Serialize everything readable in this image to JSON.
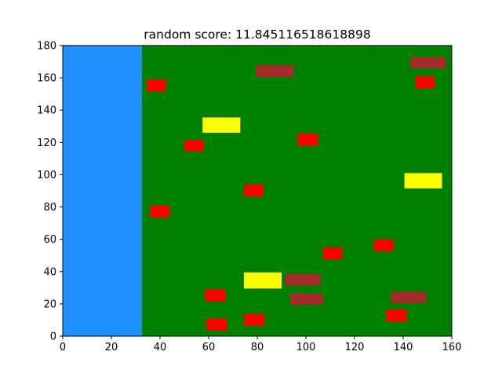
{
  "title": "random score: 11.845116518618898",
  "chart_data": {
    "type": "game-field",
    "xlim": [
      0,
      160
    ],
    "ylim": [
      0,
      180
    ],
    "xticks": [
      0,
      20,
      40,
      60,
      80,
      100,
      120,
      140,
      160
    ],
    "yticks": [
      0,
      20,
      40,
      60,
      80,
      100,
      120,
      140,
      160,
      180
    ],
    "colors": {
      "water": "#1e90ff",
      "field": "#008000",
      "red": "#ff0000",
      "brown": "#a52a2a",
      "yellow": "#ffff00"
    },
    "regions": [
      {
        "name": "water-region",
        "color": "water",
        "x0": 0,
        "x1": 32.5,
        "y0": 0,
        "y1": 180
      },
      {
        "name": "field-region",
        "color": "field",
        "x0": 32.5,
        "x1": 160,
        "y0": 0,
        "y1": 180
      }
    ],
    "objects": [
      {
        "kind": "red",
        "x0": 34.5,
        "x1": 42.5,
        "y0": 151.5,
        "y1": 159
      },
      {
        "kind": "red",
        "x0": 50,
        "x1": 58,
        "y0": 114.5,
        "y1": 121.5
      },
      {
        "kind": "red",
        "x0": 36,
        "x1": 44,
        "y0": 73.5,
        "y1": 81
      },
      {
        "kind": "red",
        "x0": 74.5,
        "x1": 82.5,
        "y0": 86.5,
        "y1": 94
      },
      {
        "kind": "red",
        "x0": 96.5,
        "x1": 105,
        "y0": 118,
        "y1": 125.5
      },
      {
        "kind": "red",
        "x0": 145,
        "x1": 153,
        "y0": 153.5,
        "y1": 161
      },
      {
        "kind": "red",
        "x0": 107,
        "x1": 115,
        "y0": 47.5,
        "y1": 55
      },
      {
        "kind": "red",
        "x0": 128,
        "x1": 136,
        "y0": 52.5,
        "y1": 60
      },
      {
        "kind": "red",
        "x0": 58.5,
        "x1": 67,
        "y0": 21.5,
        "y1": 29
      },
      {
        "kind": "red",
        "x0": 59,
        "x1": 67.5,
        "y0": 3.5,
        "y1": 11
      },
      {
        "kind": "red",
        "x0": 74.5,
        "x1": 83,
        "y0": 6.5,
        "y1": 14
      },
      {
        "kind": "red",
        "x0": 133,
        "x1": 141.5,
        "y0": 9,
        "y1": 16.5
      },
      {
        "kind": "brown",
        "x0": 79.5,
        "x1": 95,
        "y0": 160.5,
        "y1": 168
      },
      {
        "kind": "brown",
        "x0": 143,
        "x1": 157.5,
        "y0": 166,
        "y1": 173
      },
      {
        "kind": "brown",
        "x0": 91.5,
        "x1": 106,
        "y0": 31.5,
        "y1": 38.5
      },
      {
        "kind": "brown",
        "x0": 93.5,
        "x1": 107,
        "y0": 19.5,
        "y1": 26.5
      },
      {
        "kind": "brown",
        "x0": 135,
        "x1": 149.5,
        "y0": 20.5,
        "y1": 27.5
      },
      {
        "kind": "yellow",
        "x0": 57.5,
        "x1": 73,
        "y0": 126,
        "y1": 135.5
      },
      {
        "kind": "yellow",
        "x0": 140.5,
        "x1": 156,
        "y0": 91.5,
        "y1": 101
      },
      {
        "kind": "yellow",
        "x0": 74.5,
        "x1": 90,
        "y0": 29.5,
        "y1": 39.5
      }
    ]
  }
}
